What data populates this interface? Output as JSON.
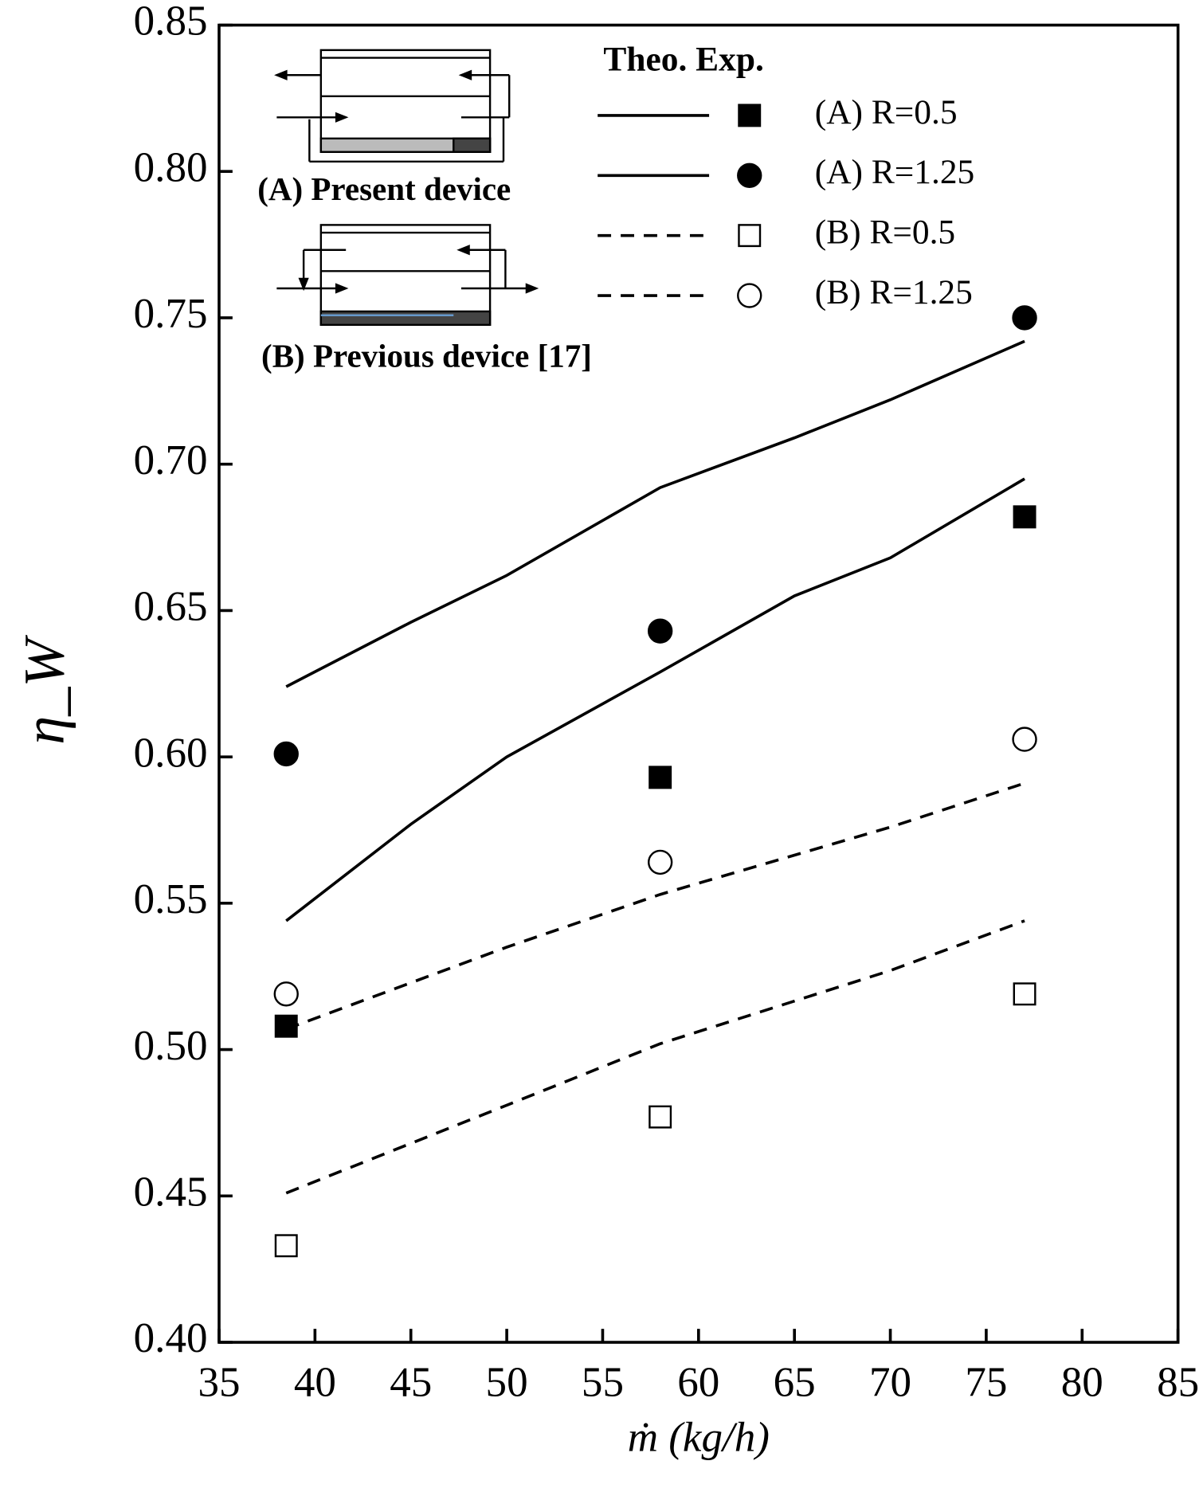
{
  "chart_data": {
    "type": "line",
    "legend_title": "Theo. Exp.",
    "xlabel": "ṁ (kg/h)",
    "ylabel": "η_W",
    "annotations": [
      "(A) Present device",
      "(B) Previous device [17]"
    ],
    "xlim": [
      35,
      85
    ],
    "xticks": [
      35,
      40,
      45,
      50,
      55,
      60,
      65,
      70,
      75,
      80,
      85
    ],
    "ylim": [
      0.4,
      0.85
    ],
    "yticks": [
      {
        "value": 0.4,
        "label": "0.40"
      },
      {
        "value": 0.45,
        "label": "0.45"
      },
      {
        "value": 0.5,
        "label": "0.50"
      },
      {
        "value": 0.55,
        "label": "0.55"
      },
      {
        "value": 0.6,
        "label": "0.60"
      },
      {
        "value": 0.65,
        "label": "0.65"
      },
      {
        "value": 0.7,
        "label": "0.70"
      },
      {
        "value": 0.75,
        "label": "0.75"
      },
      {
        "value": 0.8,
        "label": "0.80"
      },
      {
        "value": 0.85,
        "label": "0.85"
      }
    ],
    "series": [
      {
        "name": "(A) R=0.5",
        "color": "#000000",
        "line_style": "solid",
        "marker": "square",
        "filled": true,
        "theory": {
          "x": [
            38.5,
            45,
            50,
            58,
            65,
            70,
            77
          ],
          "values": [
            0.544,
            0.577,
            0.6,
            0.629,
            0.655,
            0.668,
            0.695
          ]
        },
        "experiment": {
          "x": [
            38.5,
            58,
            77
          ],
          "values": [
            0.508,
            0.593,
            0.682
          ]
        }
      },
      {
        "name": "(A) R=1.25",
        "color": "#000000",
        "line_style": "solid",
        "marker": "circle",
        "filled": true,
        "theory": {
          "x": [
            38.5,
            45,
            50,
            58,
            65,
            70,
            77
          ],
          "values": [
            0.624,
            0.646,
            0.662,
            0.692,
            0.709,
            0.722,
            0.742
          ]
        },
        "experiment": {
          "x": [
            38.5,
            58,
            77
          ],
          "values": [
            0.601,
            0.643,
            0.75
          ]
        }
      },
      {
        "name": "(B) R=0.5",
        "color": "#000000",
        "line_style": "dashed",
        "marker": "square",
        "filled": false,
        "theory": {
          "x": [
            38.5,
            50,
            58,
            70,
            77
          ],
          "values": [
            0.451,
            0.481,
            0.502,
            0.527,
            0.544
          ]
        },
        "experiment": {
          "x": [
            38.5,
            58,
            77
          ],
          "values": [
            0.433,
            0.477,
            0.519
          ]
        }
      },
      {
        "name": "(B) R=1.25",
        "color": "#000000",
        "line_style": "dashed",
        "marker": "circle",
        "filled": false,
        "theory": {
          "x": [
            38.5,
            50,
            58,
            70,
            77
          ],
          "values": [
            0.507,
            0.535,
            0.553,
            0.576,
            0.591
          ]
        },
        "experiment": {
          "x": [
            38.5,
            58,
            77
          ],
          "values": [
            0.519,
            0.564,
            0.606
          ]
        }
      }
    ]
  }
}
